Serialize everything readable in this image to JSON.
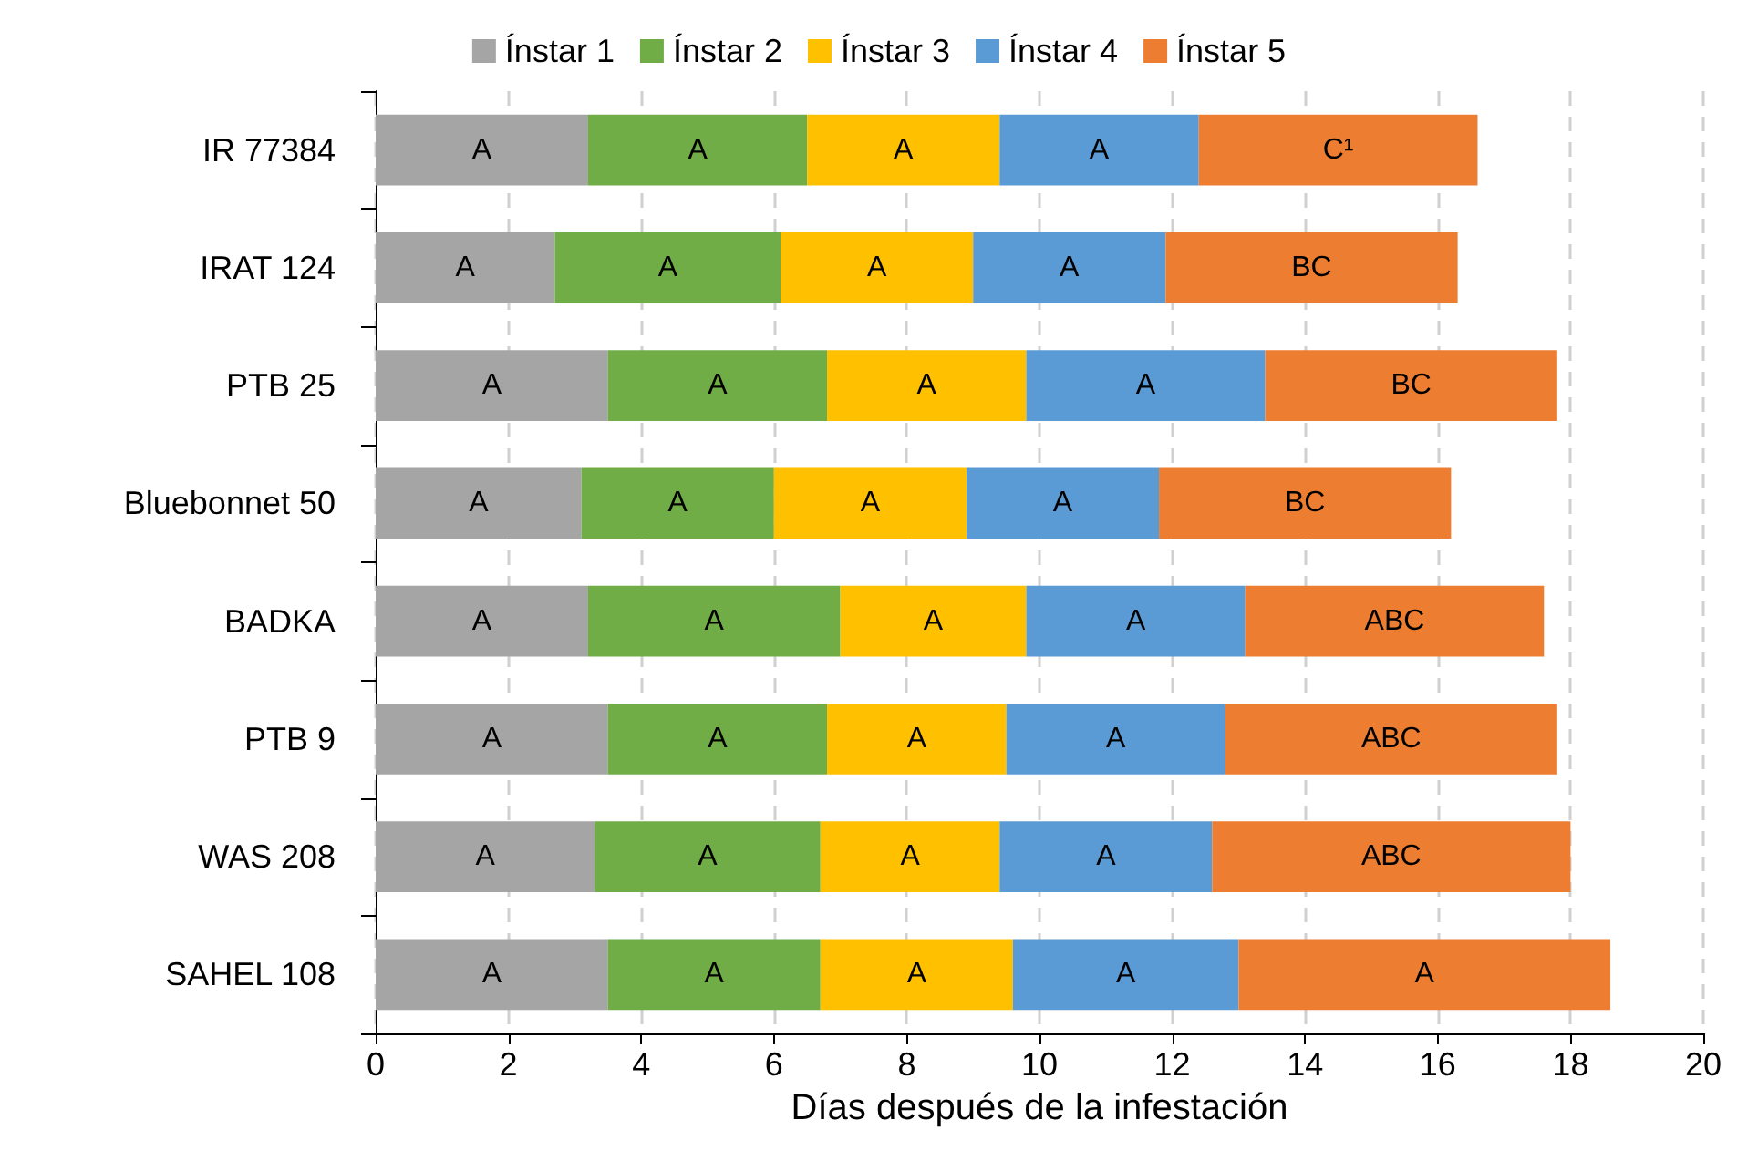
{
  "chart_data": {
    "type": "bar",
    "orientation": "horizontal",
    "stacked": true,
    "xlabel": "Días después de la infestación",
    "categories": [
      "IR 77384",
      "IRAT 124",
      "PTB 25",
      "Bluebonnet 50",
      "BADKA",
      "PTB 9",
      "WAS 208",
      "SAHEL 108"
    ],
    "series": [
      {
        "name": "Ínstar 1",
        "color": "#a5a5a5",
        "values": [
          3.2,
          2.7,
          3.5,
          3.1,
          3.2,
          3.5,
          3.3,
          3.5
        ],
        "value_labels": [
          "A",
          "A",
          "A",
          "A",
          "A",
          "A",
          "A",
          "A"
        ]
      },
      {
        "name": "Ínstar 2",
        "color": "#70ad47",
        "values": [
          3.3,
          3.4,
          3.3,
          2.9,
          3.8,
          3.3,
          3.4,
          3.2
        ],
        "value_labels": [
          "A",
          "A",
          "A",
          "A",
          "A",
          "A",
          "A",
          "A"
        ]
      },
      {
        "name": "Ínstar 3",
        "color": "#ffc000",
        "values": [
          2.9,
          2.9,
          3.0,
          2.9,
          2.8,
          2.7,
          2.7,
          2.9
        ],
        "value_labels": [
          "A",
          "A",
          "A",
          "A",
          "A",
          "A",
          "A",
          "A"
        ]
      },
      {
        "name": "Ínstar 4",
        "color": "#5b9bd5",
        "values": [
          3.0,
          2.9,
          3.6,
          2.9,
          3.3,
          3.3,
          3.2,
          3.4
        ],
        "value_labels": [
          "A",
          "A",
          "A",
          "A",
          "A",
          "A",
          "A",
          "A"
        ]
      },
      {
        "name": "Ínstar 5",
        "color": "#ed7d31",
        "values": [
          4.2,
          4.4,
          4.4,
          4.4,
          4.5,
          5.0,
          5.4,
          5.6
        ],
        "value_labels": [
          "C¹",
          "BC",
          "BC",
          "BC",
          "ABC",
          "ABC",
          "ABC",
          "A"
        ]
      }
    ],
    "xlim": [
      0,
      20
    ],
    "xticks": [
      0,
      2,
      4,
      6,
      8,
      10,
      12,
      14,
      16,
      18,
      20
    ],
    "grid": "x",
    "legend": "top"
  }
}
